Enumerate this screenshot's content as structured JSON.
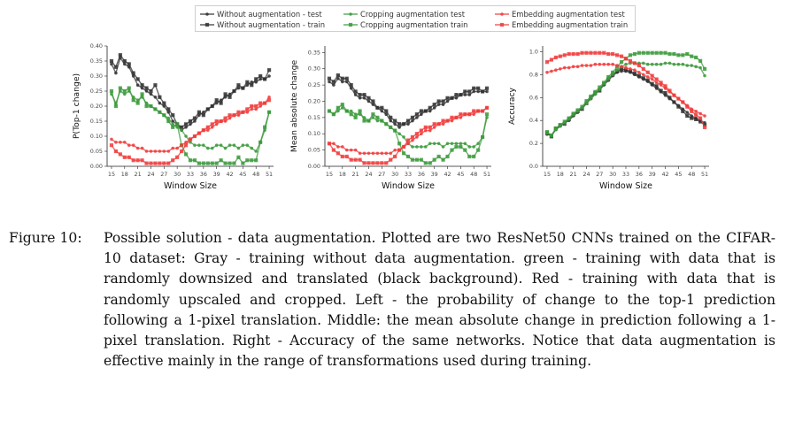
{
  "figure": {
    "label": "Figure 10:",
    "caption": "Possible solution - data augmentation. Plotted are two ResNet50 CNNs trained on the CIFAR-10 dataset: Gray - training without data augmentation. green - training with data that is randomly downsized and translated (black background). Red - training with data that is randomly upscaled and cropped. Left - the probability of change to the top-1 prediction following a 1-pixel translation. Middle: the mean absolute change in prediction following a 1-pixel translation. Right - Accuracy of the same networks. Notice that data augmentation is effective mainly in the range of transformations used during training."
  },
  "legend": {
    "items": [
      {
        "label": "Without augmentation - test",
        "color": "#333333",
        "marker": "circle"
      },
      {
        "label": "Without augmentation - train",
        "color": "#333333",
        "marker": "square"
      },
      {
        "label": "Cropping augmentation test",
        "color": "#3c9a3c",
        "marker": "circle"
      },
      {
        "label": "Cropping augmentation train",
        "color": "#3c9a3c",
        "marker": "square"
      },
      {
        "label": "Embedding augmentation test",
        "color": "#f03c3c",
        "marker": "circle"
      },
      {
        "label": "Embedding augmentation train",
        "color": "#f03c3c",
        "marker": "square"
      }
    ]
  },
  "chart_data": [
    {
      "type": "line",
      "xlabel": "Window Size",
      "ylabel": "P(Top-1 change)",
      "xlim": [
        14,
        52
      ],
      "ylim": [
        0,
        0.4
      ],
      "xticks": [
        15,
        18,
        21,
        24,
        27,
        30,
        33,
        36,
        39,
        42,
        45,
        48,
        51
      ],
      "yticks": [
        "0.00",
        "0.05",
        "0.10",
        "0.15",
        "0.20",
        "0.25",
        "0.30",
        "0.35",
        "0.40"
      ],
      "x": [
        15,
        16,
        17,
        18,
        19,
        20,
        21,
        22,
        23,
        24,
        25,
        26,
        27,
        28,
        29,
        30,
        31,
        32,
        33,
        34,
        35,
        36,
        37,
        38,
        39,
        40,
        41,
        42,
        43,
        44,
        45,
        46,
        47,
        48,
        49,
        50,
        51
      ],
      "series": [
        {
          "color": "#333333",
          "marker": "circle",
          "values": [
            0.34,
            0.31,
            0.36,
            0.34,
            0.33,
            0.3,
            0.27,
            0.26,
            0.25,
            0.24,
            0.23,
            0.21,
            0.2,
            0.18,
            0.15,
            0.14,
            0.12,
            0.13,
            0.14,
            0.15,
            0.17,
            0.18,
            0.19,
            0.2,
            0.21,
            0.22,
            0.23,
            0.24,
            0.25,
            0.26,
            0.26,
            0.27,
            0.28,
            0.28,
            0.29,
            0.29,
            0.3
          ]
        },
        {
          "color": "#333333",
          "marker": "square",
          "values": [
            0.35,
            0.33,
            0.37,
            0.35,
            0.34,
            0.31,
            0.29,
            0.27,
            0.26,
            0.25,
            0.27,
            0.23,
            0.21,
            0.19,
            0.17,
            0.14,
            0.13,
            0.14,
            0.15,
            0.16,
            0.18,
            0.17,
            0.19,
            0.2,
            0.22,
            0.21,
            0.24,
            0.23,
            0.25,
            0.27,
            0.26,
            0.28,
            0.27,
            0.29,
            0.3,
            0.29,
            0.32
          ]
        },
        {
          "color": "#3c9a3c",
          "marker": "circle",
          "values": [
            0.24,
            0.21,
            0.25,
            0.24,
            0.25,
            0.23,
            0.22,
            0.23,
            0.21,
            0.2,
            0.19,
            0.18,
            0.17,
            0.16,
            0.14,
            0.13,
            0.12,
            0.1,
            0.08,
            0.07,
            0.07,
            0.07,
            0.06,
            0.06,
            0.07,
            0.07,
            0.06,
            0.07,
            0.07,
            0.06,
            0.07,
            0.07,
            0.06,
            0.05,
            0.08,
            0.12,
            0.18
          ]
        },
        {
          "color": "#3c9a3c",
          "marker": "square",
          "values": [
            0.25,
            0.2,
            0.26,
            0.25,
            0.26,
            0.22,
            0.21,
            0.24,
            0.2,
            0.2,
            0.19,
            0.18,
            0.17,
            0.15,
            0.13,
            0.14,
            0.07,
            0.04,
            0.02,
            0.02,
            0.01,
            0.01,
            0.01,
            0.01,
            0.01,
            0.02,
            0.01,
            0.01,
            0.01,
            0.03,
            0.01,
            0.02,
            0.02,
            0.02,
            0.08,
            0.13,
            0.18
          ]
        },
        {
          "color": "#f03c3c",
          "marker": "circle",
          "values": [
            0.09,
            0.08,
            0.08,
            0.08,
            0.07,
            0.07,
            0.06,
            0.06,
            0.05,
            0.05,
            0.05,
            0.05,
            0.05,
            0.05,
            0.06,
            0.06,
            0.07,
            0.08,
            0.09,
            0.1,
            0.11,
            0.12,
            0.12,
            0.13,
            0.14,
            0.15,
            0.15,
            0.16,
            0.17,
            0.17,
            0.18,
            0.18,
            0.19,
            0.19,
            0.2,
            0.21,
            0.23
          ]
        },
        {
          "color": "#f03c3c",
          "marker": "square",
          "values": [
            0.07,
            0.05,
            0.04,
            0.03,
            0.03,
            0.02,
            0.02,
            0.02,
            0.01,
            0.01,
            0.01,
            0.01,
            0.01,
            0.01,
            0.02,
            0.03,
            0.05,
            0.07,
            0.09,
            0.1,
            0.11,
            0.12,
            0.13,
            0.14,
            0.15,
            0.15,
            0.16,
            0.17,
            0.17,
            0.18,
            0.18,
            0.19,
            0.2,
            0.2,
            0.21,
            0.21,
            0.22
          ]
        }
      ]
    },
    {
      "type": "line",
      "xlabel": "Window Size",
      "ylabel": "Mean absolute change",
      "xlim": [
        14,
        52
      ],
      "ylim": [
        0,
        0.37
      ],
      "xticks": [
        15,
        18,
        21,
        24,
        27,
        30,
        33,
        36,
        39,
        42,
        45,
        48,
        51
      ],
      "yticks": [
        "0.00",
        "0.05",
        "0.10",
        "0.15",
        "0.20",
        "0.25",
        "0.30",
        "0.35"
      ],
      "x": [
        15,
        16,
        17,
        18,
        19,
        20,
        21,
        22,
        23,
        24,
        25,
        26,
        27,
        28,
        29,
        30,
        31,
        32,
        33,
        34,
        35,
        36,
        37,
        38,
        39,
        40,
        41,
        42,
        43,
        44,
        45,
        46,
        47,
        48,
        49,
        50,
        51
      ],
      "series": [
        {
          "color": "#333333",
          "marker": "circle",
          "values": [
            0.26,
            0.25,
            0.27,
            0.26,
            0.26,
            0.24,
            0.22,
            0.21,
            0.21,
            0.2,
            0.19,
            0.18,
            0.17,
            0.16,
            0.14,
            0.13,
            0.12,
            0.13,
            0.13,
            0.14,
            0.15,
            0.16,
            0.17,
            0.17,
            0.18,
            0.19,
            0.19,
            0.2,
            0.21,
            0.21,
            0.22,
            0.22,
            0.22,
            0.23,
            0.23,
            0.23,
            0.23
          ]
        },
        {
          "color": "#333333",
          "marker": "square",
          "values": [
            0.27,
            0.26,
            0.28,
            0.27,
            0.27,
            0.25,
            0.23,
            0.22,
            0.22,
            0.21,
            0.2,
            0.18,
            0.18,
            0.17,
            0.15,
            0.14,
            0.13,
            0.13,
            0.14,
            0.15,
            0.16,
            0.17,
            0.17,
            0.18,
            0.19,
            0.2,
            0.2,
            0.21,
            0.21,
            0.22,
            0.22,
            0.23,
            0.23,
            0.24,
            0.24,
            0.23,
            0.24
          ]
        },
        {
          "color": "#3c9a3c",
          "marker": "circle",
          "values": [
            0.17,
            0.16,
            0.17,
            0.18,
            0.17,
            0.17,
            0.16,
            0.16,
            0.15,
            0.14,
            0.15,
            0.14,
            0.14,
            0.13,
            0.12,
            0.11,
            0.1,
            0.09,
            0.07,
            0.06,
            0.06,
            0.06,
            0.06,
            0.07,
            0.07,
            0.07,
            0.06,
            0.07,
            0.07,
            0.07,
            0.07,
            0.07,
            0.06,
            0.06,
            0.07,
            0.09,
            0.15
          ]
        },
        {
          "color": "#3c9a3c",
          "marker": "square",
          "values": [
            0.17,
            0.16,
            0.18,
            0.19,
            0.17,
            0.16,
            0.15,
            0.17,
            0.14,
            0.14,
            0.16,
            0.15,
            0.14,
            0.13,
            0.12,
            0.11,
            0.07,
            0.04,
            0.03,
            0.02,
            0.02,
            0.02,
            0.01,
            0.01,
            0.02,
            0.03,
            0.02,
            0.03,
            0.05,
            0.06,
            0.06,
            0.05,
            0.03,
            0.03,
            0.05,
            0.09,
            0.16
          ]
        },
        {
          "color": "#f03c3c",
          "marker": "circle",
          "values": [
            0.07,
            0.07,
            0.06,
            0.06,
            0.05,
            0.05,
            0.05,
            0.04,
            0.04,
            0.04,
            0.04,
            0.04,
            0.04,
            0.04,
            0.04,
            0.05,
            0.05,
            0.06,
            0.07,
            0.08,
            0.09,
            0.1,
            0.11,
            0.11,
            0.12,
            0.13,
            0.13,
            0.14,
            0.14,
            0.15,
            0.15,
            0.16,
            0.16,
            0.16,
            0.17,
            0.17,
            0.18
          ]
        },
        {
          "color": "#f03c3c",
          "marker": "square",
          "values": [
            0.07,
            0.05,
            0.04,
            0.03,
            0.03,
            0.02,
            0.02,
            0.02,
            0.01,
            0.01,
            0.01,
            0.01,
            0.01,
            0.01,
            0.02,
            0.03,
            0.05,
            0.06,
            0.08,
            0.09,
            0.1,
            0.11,
            0.12,
            0.12,
            0.13,
            0.13,
            0.14,
            0.14,
            0.15,
            0.15,
            0.16,
            0.16,
            0.16,
            0.17,
            0.17,
            0.17,
            0.18
          ]
        }
      ]
    },
    {
      "type": "line",
      "xlabel": "Window Size",
      "ylabel": "Accuracy",
      "xlim": [
        14,
        52
      ],
      "ylim": [
        0,
        1.05
      ],
      "xticks": [
        15,
        18,
        21,
        24,
        27,
        30,
        33,
        36,
        39,
        42,
        45,
        48,
        51
      ],
      "yticks": [
        "0.0",
        "0.2",
        "0.4",
        "0.6",
        "0.8",
        "1.0"
      ],
      "x": [
        15,
        16,
        17,
        18,
        19,
        20,
        21,
        22,
        23,
        24,
        25,
        26,
        27,
        28,
        29,
        30,
        31,
        32,
        33,
        34,
        35,
        36,
        37,
        38,
        39,
        40,
        41,
        42,
        43,
        44,
        45,
        46,
        47,
        48,
        49,
        50,
        51
      ],
      "series": [
        {
          "color": "#333333",
          "marker": "circle",
          "values": [
            0.28,
            0.27,
            0.32,
            0.35,
            0.38,
            0.4,
            0.44,
            0.47,
            0.51,
            0.55,
            0.59,
            0.63,
            0.67,
            0.71,
            0.75,
            0.79,
            0.82,
            0.83,
            0.83,
            0.82,
            0.8,
            0.78,
            0.76,
            0.74,
            0.71,
            0.68,
            0.65,
            0.62,
            0.59,
            0.56,
            0.53,
            0.5,
            0.47,
            0.44,
            0.42,
            0.4,
            0.38
          ]
        },
        {
          "color": "#333333",
          "marker": "square",
          "values": [
            0.29,
            0.26,
            0.33,
            0.36,
            0.37,
            0.41,
            0.45,
            0.48,
            0.5,
            0.55,
            0.6,
            0.64,
            0.66,
            0.72,
            0.76,
            0.8,
            0.83,
            0.85,
            0.84,
            0.83,
            0.81,
            0.79,
            0.77,
            0.75,
            0.72,
            0.7,
            0.66,
            0.64,
            0.6,
            0.56,
            0.52,
            0.48,
            0.44,
            0.42,
            0.41,
            0.39,
            0.36
          ]
        },
        {
          "color": "#3c9a3c",
          "marker": "circle",
          "values": [
            0.29,
            0.27,
            0.32,
            0.35,
            0.38,
            0.41,
            0.45,
            0.48,
            0.51,
            0.55,
            0.59,
            0.63,
            0.67,
            0.72,
            0.76,
            0.8,
            0.84,
            0.87,
            0.89,
            0.9,
            0.9,
            0.9,
            0.9,
            0.89,
            0.89,
            0.89,
            0.89,
            0.9,
            0.9,
            0.89,
            0.89,
            0.89,
            0.88,
            0.88,
            0.87,
            0.86,
            0.79
          ]
        },
        {
          "color": "#3c9a3c",
          "marker": "square",
          "values": [
            0.3,
            0.27,
            0.33,
            0.36,
            0.39,
            0.42,
            0.46,
            0.49,
            0.52,
            0.57,
            0.61,
            0.65,
            0.69,
            0.73,
            0.78,
            0.82,
            0.87,
            0.91,
            0.94,
            0.97,
            0.98,
            0.99,
            0.99,
            0.99,
            0.99,
            0.99,
            0.99,
            0.99,
            0.98,
            0.98,
            0.97,
            0.97,
            0.98,
            0.96,
            0.95,
            0.92,
            0.85
          ]
        },
        {
          "color": "#f03c3c",
          "marker": "circle",
          "values": [
            0.82,
            0.83,
            0.84,
            0.85,
            0.86,
            0.86,
            0.87,
            0.87,
            0.88,
            0.88,
            0.88,
            0.89,
            0.89,
            0.89,
            0.89,
            0.89,
            0.88,
            0.87,
            0.86,
            0.85,
            0.84,
            0.82,
            0.8,
            0.78,
            0.76,
            0.73,
            0.71,
            0.68,
            0.65,
            0.62,
            0.59,
            0.56,
            0.53,
            0.5,
            0.48,
            0.46,
            0.44
          ]
        },
        {
          "color": "#f03c3c",
          "marker": "square",
          "values": [
            0.91,
            0.93,
            0.95,
            0.96,
            0.97,
            0.98,
            0.98,
            0.98,
            0.99,
            0.99,
            0.99,
            0.99,
            0.99,
            0.99,
            0.98,
            0.98,
            0.97,
            0.96,
            0.94,
            0.92,
            0.9,
            0.88,
            0.85,
            0.82,
            0.79,
            0.76,
            0.73,
            0.7,
            0.66,
            0.62,
            0.59,
            0.56,
            0.52,
            0.48,
            0.45,
            0.42,
            0.34
          ]
        }
      ]
    }
  ]
}
